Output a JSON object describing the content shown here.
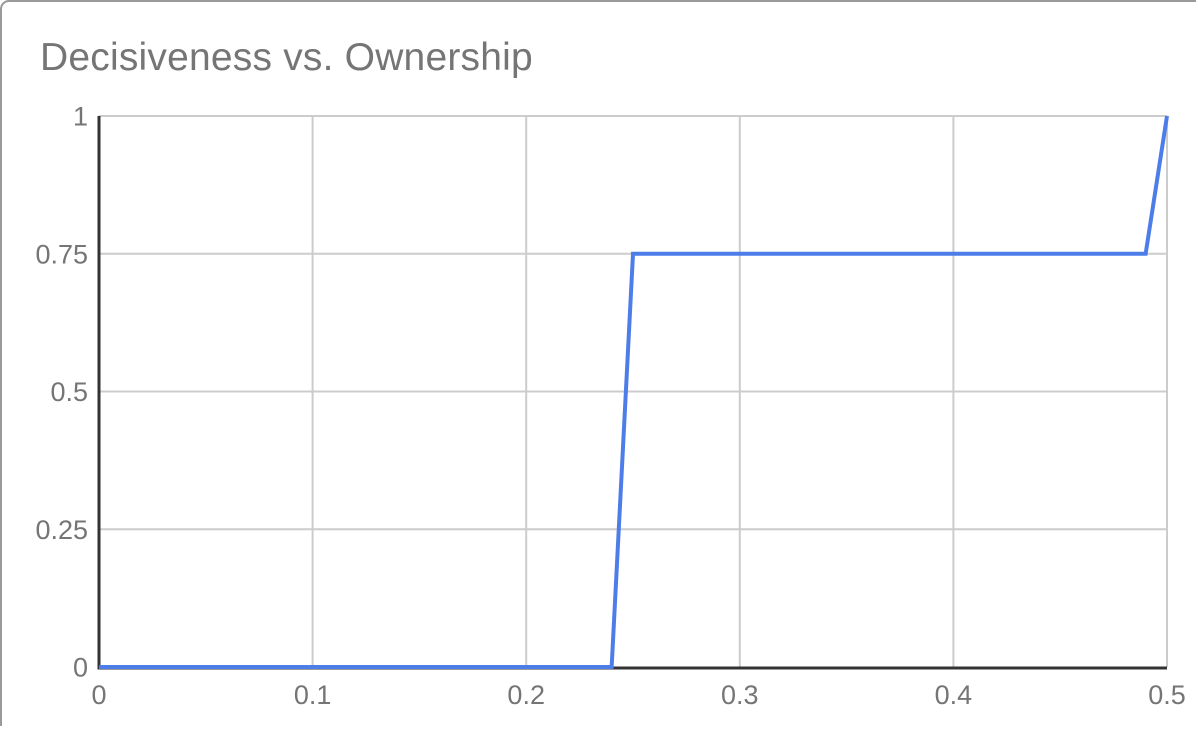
{
  "chart": {
    "title": "Decisiveness vs. Ownership"
  },
  "colors": {
    "series_line": "#4d7de8",
    "gridline": "#cccccc",
    "axis_line": "#333333",
    "label_text": "#757575",
    "card_border": "#9a9a9a",
    "background": "#ffffff"
  },
  "chart_data": {
    "type": "line",
    "title": "Decisiveness vs. Ownership",
    "xlabel": "",
    "ylabel": "",
    "x": [
      0,
      0.24,
      0.25,
      0.49,
      0.5
    ],
    "y": [
      0,
      0,
      0.75,
      0.75,
      1
    ],
    "xlim": [
      0,
      0.5
    ],
    "ylim": [
      0,
      1
    ],
    "x_ticks": {
      "values": [
        0,
        0.1,
        0.2,
        0.3,
        0.4,
        0.5
      ],
      "labels": [
        "0",
        "0.1",
        "0.2",
        "0.3",
        "0.4",
        "0.5"
      ]
    },
    "y_ticks": {
      "values": [
        0,
        0.25,
        0.5,
        0.75,
        1
      ],
      "labels": [
        "0",
        "0.25",
        "0.5",
        "0.75",
        "1"
      ]
    },
    "grid": true,
    "legend": "none",
    "line_color": "#4d7de8",
    "line_width": 4
  }
}
